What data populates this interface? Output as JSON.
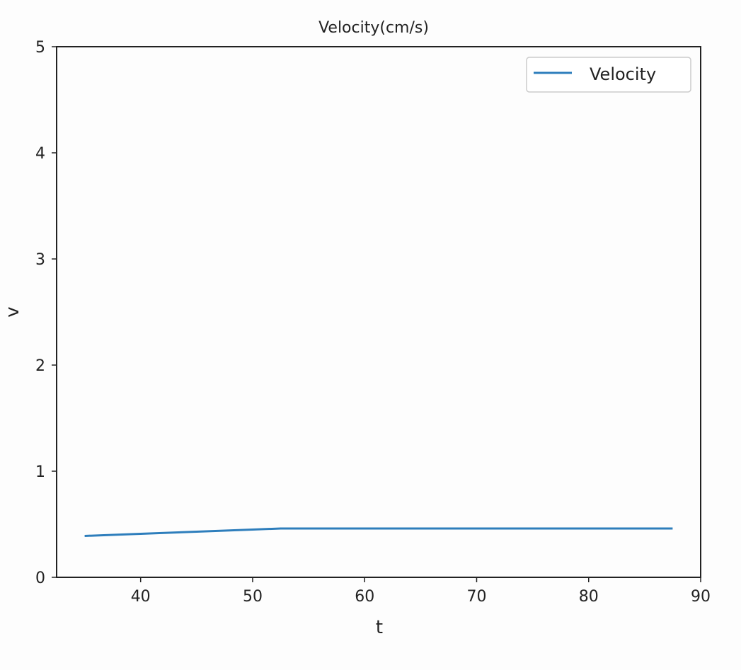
{
  "colors": {
    "series_line": "#2e7ebc",
    "axes": "#222222",
    "background": "#fdfdfd",
    "legend_border": "#cccccc"
  },
  "chart_data": {
    "type": "line",
    "title": "Velocity(cm/s)",
    "xlabel": "t",
    "ylabel": "v",
    "xlim": [
      32.5,
      90
    ],
    "ylim": [
      0,
      5
    ],
    "xticks": [
      40,
      50,
      60,
      70,
      80,
      90
    ],
    "yticks": [
      0,
      1,
      2,
      3,
      4,
      5
    ],
    "grid": false,
    "legend_position": "top-right",
    "series": [
      {
        "name": "Velocity",
        "x": [
          35,
          40,
          45,
          50,
          52.5,
          55,
          60,
          65,
          70,
          75,
          80,
          85,
          87.5
        ],
        "y": [
          0.39,
          0.41,
          0.43,
          0.45,
          0.46,
          0.46,
          0.46,
          0.46,
          0.46,
          0.46,
          0.46,
          0.46,
          0.46
        ]
      }
    ]
  }
}
